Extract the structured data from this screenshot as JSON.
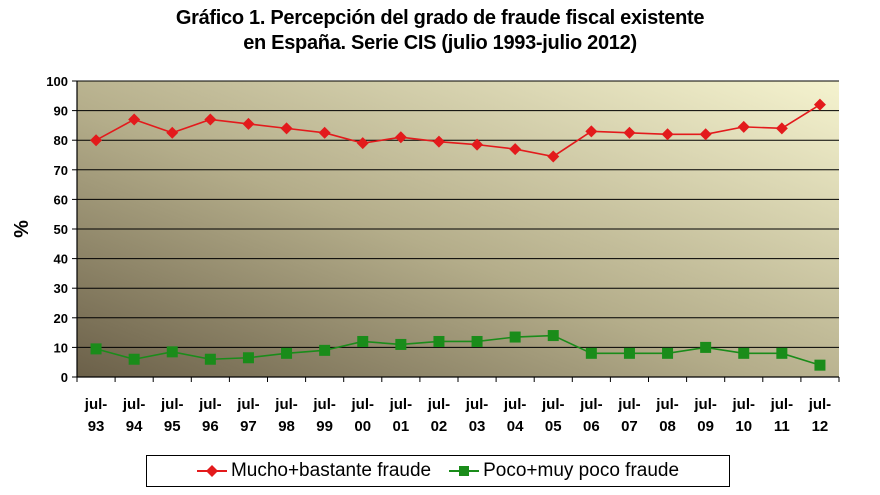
{
  "chart_data": {
    "type": "line",
    "title_line1": "Gráfico 1. Percepción del grado de fraude fiscal existente",
    "title_line2": "en España. Serie CIS (julio 1993-julio 2012)",
    "ylabel": "%",
    "ylim": [
      0,
      100
    ],
    "yticks": [
      "0",
      "10",
      "20",
      "30",
      "40",
      "50",
      "60",
      "70",
      "80",
      "90",
      "100"
    ],
    "grid": "horizontal",
    "legend_position": "bottom",
    "categories": [
      [
        "jul-",
        "93"
      ],
      [
        "jul-",
        "94"
      ],
      [
        "jul-",
        "95"
      ],
      [
        "jul-",
        "96"
      ],
      [
        "jul-",
        "97"
      ],
      [
        "jul-",
        "98"
      ],
      [
        "jul-",
        "99"
      ],
      [
        "jul-",
        "00"
      ],
      [
        "jul-",
        "01"
      ],
      [
        "jul-",
        "02"
      ],
      [
        "jul-",
        "03"
      ],
      [
        "jul-",
        "04"
      ],
      [
        "jul-",
        "05"
      ],
      [
        "jul-",
        "06"
      ],
      [
        "jul-",
        "07"
      ],
      [
        "jul-",
        "08"
      ],
      [
        "jul-",
        "09"
      ],
      [
        "jul-",
        "10"
      ],
      [
        "jul-",
        "11"
      ],
      [
        "jul-",
        "12"
      ]
    ],
    "series": [
      {
        "name": "Mucho+bastante fraude",
        "color": "#e31a1c",
        "marker": "diamond",
        "values": [
          80,
          87,
          82.5,
          87,
          85.5,
          84,
          82.5,
          79,
          81,
          79.5,
          78.5,
          77,
          74.5,
          83,
          82.5,
          82,
          82,
          84.5,
          84,
          92
        ]
      },
      {
        "name": "Poco+muy poco fraude",
        "color": "#1a8c1a",
        "marker": "square",
        "values": [
          9.5,
          6,
          8.5,
          6,
          6.5,
          8,
          9,
          12,
          11,
          12,
          12,
          13.5,
          14,
          8,
          8,
          8,
          10,
          8,
          8,
          4
        ]
      }
    ]
  }
}
